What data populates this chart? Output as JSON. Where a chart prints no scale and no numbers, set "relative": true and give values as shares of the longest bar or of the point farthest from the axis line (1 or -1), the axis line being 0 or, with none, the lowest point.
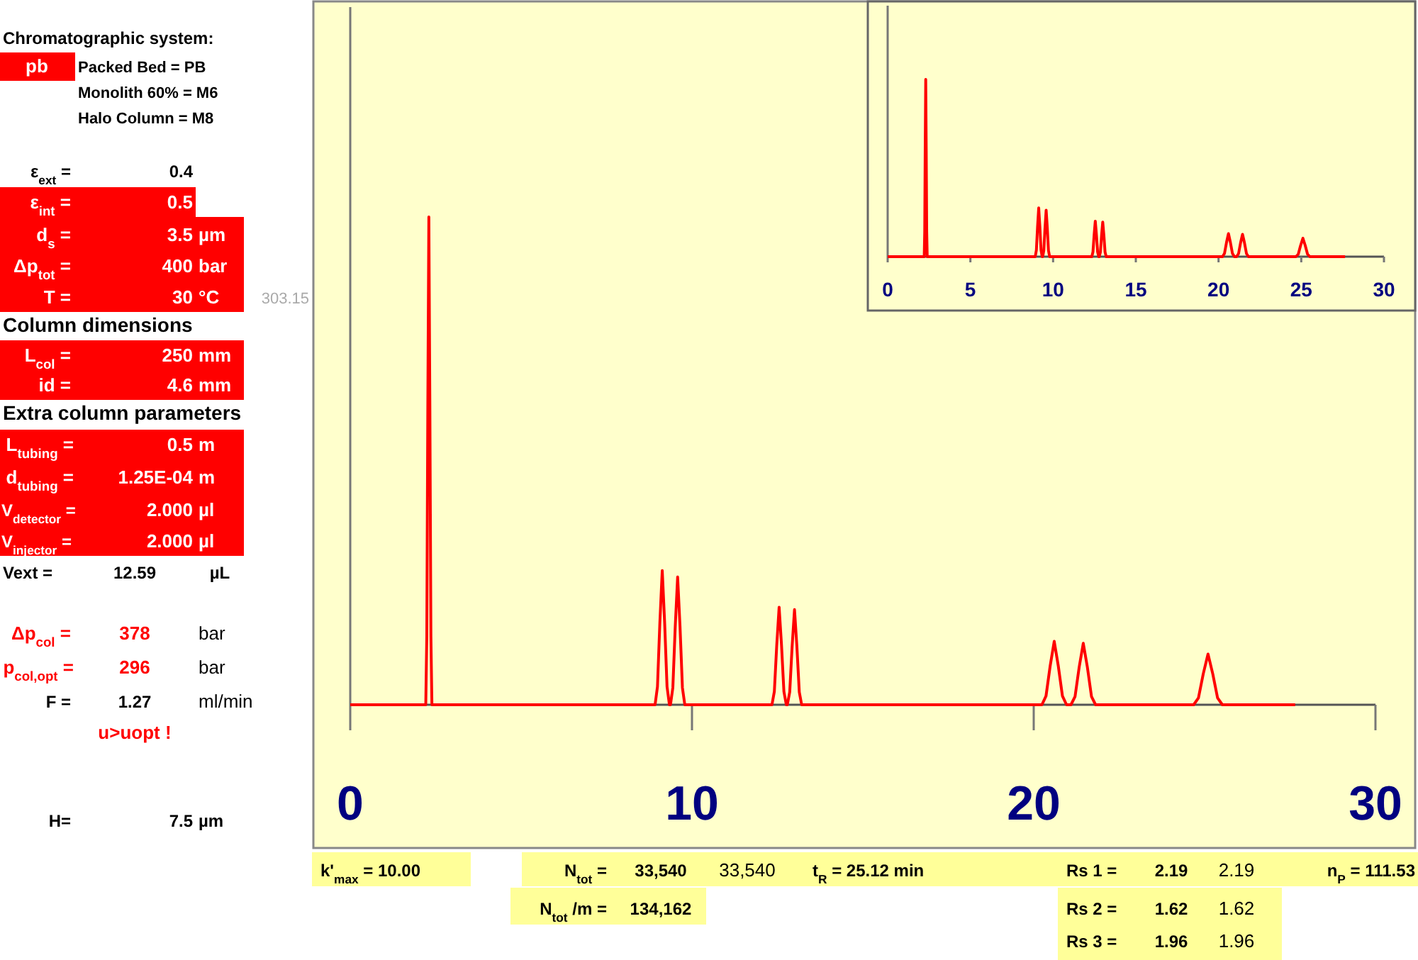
{
  "chart_data": [
    {
      "type": "line",
      "relative": true,
      "xlim": [
        0,
        30
      ],
      "xticks": [
        0,
        10,
        20,
        30
      ],
      "x": [
        0,
        2.21,
        2.24,
        2.27,
        2.3,
        2.33,
        2.36,
        2.39,
        8.92,
        8.99,
        9.06,
        9.13,
        9.2,
        9.27,
        9.34,
        9.37,
        9.44,
        9.51,
        9.58,
        9.65,
        9.72,
        9.79,
        12.34,
        12.41,
        12.48,
        12.55,
        12.62,
        12.69,
        12.76,
        12.79,
        12.86,
        12.93,
        13.0,
        13.07,
        13.14,
        13.21,
        20.24,
        20.36,
        20.48,
        20.6,
        20.72,
        20.84,
        20.96,
        21.09,
        21.21,
        21.33,
        21.45,
        21.57,
        21.69,
        21.81,
        24.68,
        24.82,
        24.96,
        25.1,
        25.24,
        25.38,
        25.52,
        27.65
      ],
      "series": [
        {
          "color": "#ff0000",
          "values": [
            0,
            0,
            0.14,
            0.61,
            1,
            0.61,
            0.14,
            0,
            0,
            0.037,
            0.168,
            0.275,
            0.168,
            0.037,
            0,
            0,
            0.035,
            0.16,
            0.262,
            0.16,
            0.035,
            0,
            0,
            0.027,
            0.122,
            0.2,
            0.122,
            0.027,
            0,
            0,
            0.026,
            0.119,
            0.195,
            0.119,
            0.026,
            0,
            0,
            0.018,
            0.079,
            0.13,
            0.079,
            0.018,
            0,
            0,
            0.017,
            0.077,
            0.126,
            0.077,
            0.017,
            0,
            0,
            0.014,
            0.063,
            0.104,
            0.063,
            0.014,
            0,
            0
          ]
        }
      ]
    },
    {
      "type": "line",
      "relative": true,
      "xlim": [
        0,
        30
      ],
      "xticks": [
        0,
        5,
        10,
        15,
        20,
        25,
        30
      ],
      "x": [
        0,
        2.21,
        2.24,
        2.27,
        2.3,
        2.33,
        2.36,
        2.39,
        8.92,
        8.99,
        9.06,
        9.13,
        9.2,
        9.27,
        9.34,
        9.37,
        9.44,
        9.51,
        9.58,
        9.65,
        9.72,
        9.79,
        12.34,
        12.41,
        12.48,
        12.55,
        12.62,
        12.69,
        12.76,
        12.79,
        12.86,
        12.93,
        13.0,
        13.07,
        13.14,
        13.21,
        20.24,
        20.36,
        20.48,
        20.6,
        20.72,
        20.84,
        20.96,
        21.09,
        21.21,
        21.33,
        21.45,
        21.57,
        21.69,
        21.81,
        24.68,
        24.82,
        24.96,
        25.1,
        25.24,
        25.38,
        25.52,
        27.65
      ],
      "series": [
        {
          "color": "#ff0000",
          "values": [
            0,
            0,
            0.14,
            0.61,
            1,
            0.61,
            0.14,
            0,
            0,
            0.037,
            0.168,
            0.275,
            0.168,
            0.037,
            0,
            0,
            0.035,
            0.16,
            0.262,
            0.16,
            0.035,
            0,
            0,
            0.027,
            0.122,
            0.2,
            0.122,
            0.027,
            0,
            0,
            0.026,
            0.119,
            0.195,
            0.119,
            0.026,
            0,
            0,
            0.018,
            0.079,
            0.13,
            0.079,
            0.018,
            0,
            0,
            0.017,
            0.077,
            0.126,
            0.077,
            0.017,
            0,
            0,
            0.014,
            0.063,
            0.104,
            0.063,
            0.014,
            0,
            0
          ]
        }
      ]
    },
    {
      "type": "other",
      "annotations": [
        "Chromatographic system:",
        "pb",
        "Packed Bed = PB",
        "Monolith 60% = M6",
        "Halo Column = M8",
        "ε$_{ext}$ =",
        "0.4",
        "ε$_{int}$ =",
        "0.5",
        "d$_{s}$ =",
        "3.5",
        "µm",
        "Δp$_{tot}$ =",
        "400",
        "bar",
        "T =",
        "30",
        "°C",
        "303.15",
        "Column dimensions",
        "L$_{col}$ =",
        "250",
        "mm",
        "id =",
        "4.6",
        "mm",
        "Extra column parameters",
        "L$_{tubing}$ =",
        "0.5",
        "m",
        "d$_{tubing}$ =",
        "1.25E-04",
        "m",
        "V$_{detector}$ =",
        "2.000",
        "µl",
        "V$_{injector}$ =",
        "2.000",
        "µl",
        "Vext =",
        "12.59",
        "µL",
        "Δp$_{col}$ =",
        "378",
        "bar",
        "p$_{col,opt}$ =",
        "296",
        "bar",
        "F =",
        "1.27",
        "ml/min",
        "u>uopt !",
        "H=",
        "7.5",
        "µm",
        "k'$_{max}$ =  10.00",
        "N$_{tot}$ =",
        "33,540",
        "33,540",
        "t$_{R}$ =  25.12  min",
        "Rs 1 =",
        "2.19",
        "2.19",
        "n$_{P}$ = 111.53",
        "N$_{tot}$/m =",
        "134,162",
        "Rs 2 =",
        "1.62",
        "1.62",
        "Rs 3 =",
        "1.96",
        "1.96"
      ]
    }
  ]
}
